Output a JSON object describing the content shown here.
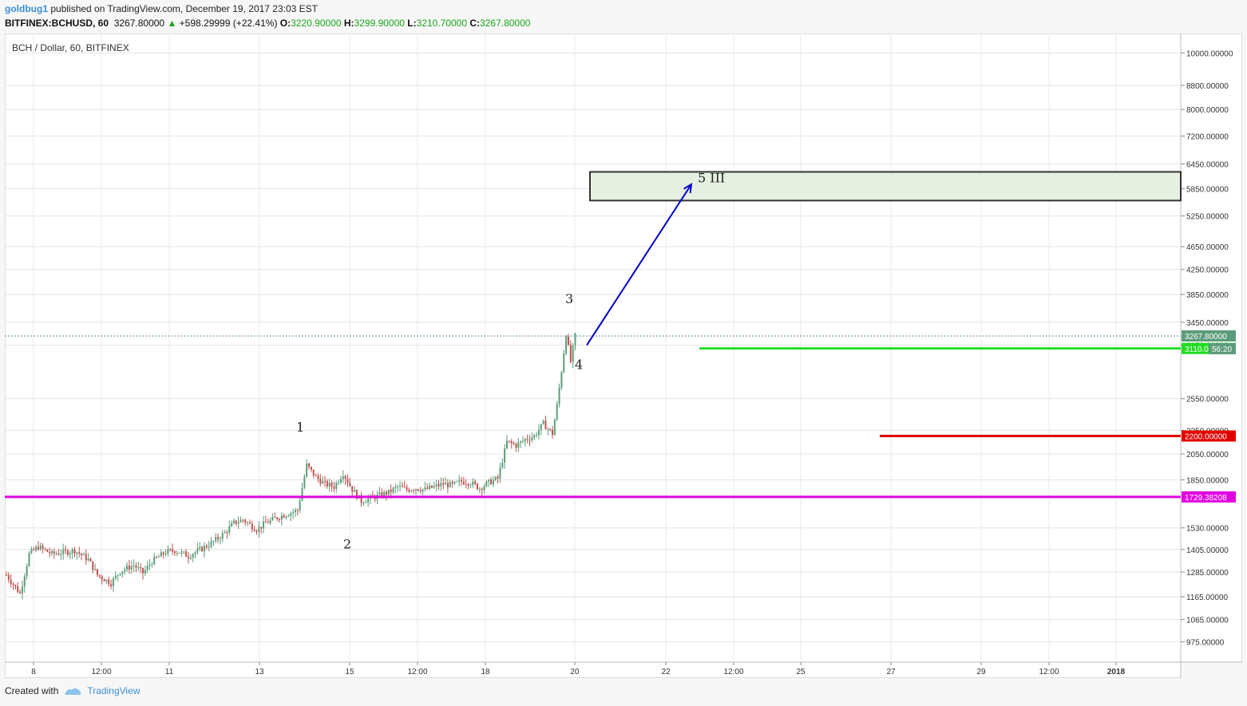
{
  "header": {
    "user": "goldbug1",
    "published": "published on TradingView.com, December 19, 2017 23:03 EST",
    "symbol": "BITFINEX:BCHUSD, 60",
    "last": "3267.80000",
    "change": "+598.29999 (+22.41%)",
    "o_label": "O:",
    "o_val": "3220.90000",
    "h_label": "H:",
    "h_val": "3299.90000",
    "l_label": "L:",
    "l_val": "3210.70000",
    "c_label": "C:",
    "c_val": "3267.80000"
  },
  "footer": {
    "created_with": "Created with",
    "brand": "TradingView"
  },
  "colors": {
    "up": "#5b9c7a",
    "down": "#c0504d",
    "magenta": "#e000e0",
    "green": "#22dd22",
    "red": "#e00000",
    "arrow": "#0000cc",
    "zone_fill": "#e6f0e1"
  },
  "chart_data": {
    "type": "candlestick",
    "title": "BCH / Dollar, 60, BITFINEX",
    "y_scale": "log",
    "ylim": [
      900,
      10800
    ],
    "y_ticks": [
      "10000.00000",
      "8800.00000",
      "8000.00000",
      "7200.00000",
      "6450.00000",
      "5850.00000",
      "5250.00000",
      "4650.00000",
      "4250.00000",
      "3850.00000",
      "3450.00000",
      "3150.00000",
      "2550.00000",
      "2250.00000",
      "2050.00000",
      "1850.00000",
      "1530.00000",
      "1405.00000",
      "1285.00000",
      "1165.00000",
      "1065.00000",
      "975.00000"
    ],
    "x_ticks": [
      "8",
      "12:00",
      "11",
      "13",
      "15",
      "12:00",
      "18",
      "20",
      "22",
      "12:00",
      "25",
      "27",
      "29",
      "12:00",
      "2018"
    ],
    "price_path": [
      [
        0,
        1270
      ],
      [
        3,
        1180
      ],
      [
        5,
        1380
      ],
      [
        7,
        1420
      ],
      [
        10,
        1380
      ],
      [
        13,
        1390
      ],
      [
        15,
        1400
      ],
      [
        18,
        1350
      ],
      [
        20,
        1270
      ],
      [
        23,
        1230
      ],
      [
        25,
        1290
      ],
      [
        28,
        1320
      ],
      [
        30,
        1280
      ],
      [
        32,
        1340
      ],
      [
        35,
        1390
      ],
      [
        37,
        1400
      ],
      [
        40,
        1370
      ],
      [
        43,
        1410
      ],
      [
        45,
        1440
      ],
      [
        48,
        1500
      ],
      [
        50,
        1560
      ],
      [
        52,
        1580
      ],
      [
        55,
        1520
      ],
      [
        57,
        1560
      ],
      [
        60,
        1600
      ],
      [
        62,
        1620
      ],
      [
        64,
        1640
      ],
      [
        66,
        1960
      ],
      [
        68,
        1870
      ],
      [
        70,
        1820
      ],
      [
        72,
        1800
      ],
      [
        74,
        1900
      ],
      [
        76,
        1780
      ],
      [
        78,
        1700
      ],
      [
        80,
        1720
      ],
      [
        82,
        1740
      ],
      [
        84,
        1760
      ],
      [
        86,
        1800
      ],
      [
        88,
        1780
      ],
      [
        90,
        1790
      ],
      [
        92,
        1780
      ],
      [
        94,
        1800
      ],
      [
        96,
        1820
      ],
      [
        98,
        1810
      ],
      [
        100,
        1840
      ],
      [
        102,
        1830
      ],
      [
        104,
        1790
      ],
      [
        106,
        1830
      ],
      [
        108,
        1860
      ],
      [
        110,
        2150
      ],
      [
        112,
        2120
      ],
      [
        114,
        2170
      ],
      [
        116,
        2200
      ],
      [
        118,
        2310
      ],
      [
        120,
        2220
      ],
      [
        121,
        2480
      ],
      [
        122,
        2850
      ],
      [
        123,
        3300
      ],
      [
        124,
        2950
      ],
      [
        125,
        3267.8
      ]
    ],
    "last_price": "3267.80000",
    "countdown": "56:20",
    "levels": [
      {
        "value": "3110.00000",
        "color": "green"
      },
      {
        "value": "2200.00000",
        "color": "red"
      },
      {
        "value": "1729.38208",
        "color": "magenta"
      }
    ],
    "target_zone": {
      "low": 5580,
      "high": 6250
    },
    "wave_labels": [
      {
        "text": "1",
        "price": 2240
      },
      {
        "text": "2",
        "price": 1410
      },
      {
        "text": "3",
        "price": 3720
      },
      {
        "text": "4",
        "price": 2870
      },
      {
        "text": "5 III",
        "price": 6000
      }
    ],
    "arrow": {
      "from": 3150,
      "to": 5950
    }
  }
}
